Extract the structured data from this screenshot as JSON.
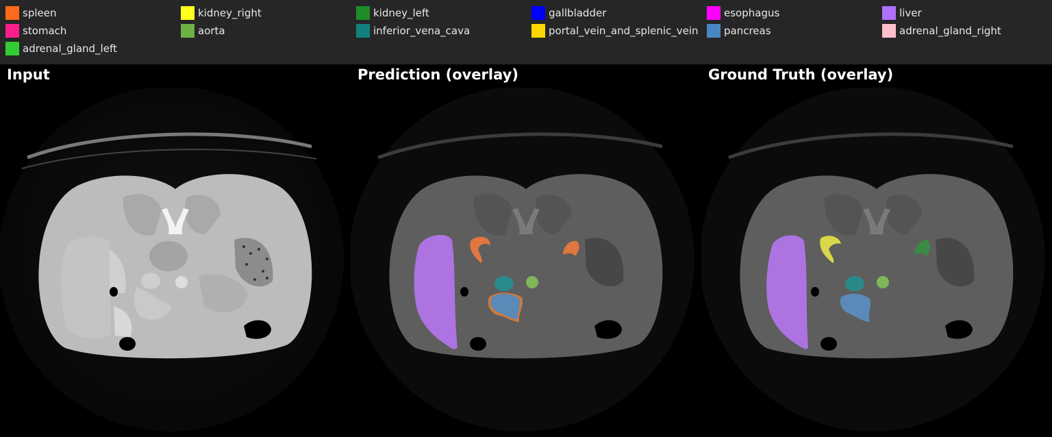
{
  "legend": {
    "items": [
      {
        "label": "spleen",
        "color": "#ff6a1a"
      },
      {
        "label": "kidney_right",
        "color": "#ffff1f"
      },
      {
        "label": "kidney_left",
        "color": "#1f8c2a"
      },
      {
        "label": "gallbladder",
        "color": "#0000ff"
      },
      {
        "label": "esophagus",
        "color": "#ff00ff"
      },
      {
        "label": "liver",
        "color": "#b070ff"
      },
      {
        "label": "stomach",
        "color": "#ff1f8c"
      },
      {
        "label": "aorta",
        "color": "#6fb244"
      },
      {
        "label": "inferior_vena_cava",
        "color": "#138080"
      },
      {
        "label": "portal_vein_and_splenic_vein",
        "color": "#ffd700"
      },
      {
        "label": "pancreas",
        "color": "#4a86c4"
      },
      {
        "label": "adrenal_gland_right",
        "color": "#ffc0cb"
      },
      {
        "label": "adrenal_gland_left",
        "color": "#33cc33"
      }
    ]
  },
  "panels": {
    "input": {
      "title": "Input"
    },
    "prediction": {
      "title": "Prediction (overlay)"
    },
    "ground_truth": {
      "title": "Ground Truth (overlay)"
    }
  }
}
